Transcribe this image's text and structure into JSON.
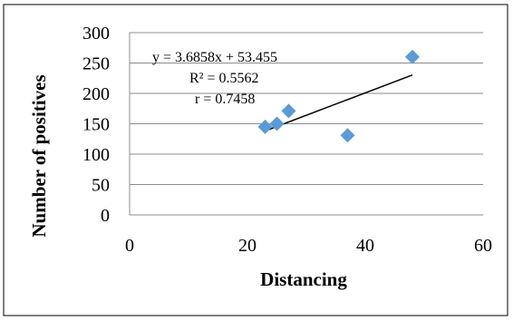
{
  "chart_data": {
    "type": "scatter",
    "title": "",
    "xlabel": "Distancing",
    "ylabel": "Number of positives",
    "xlim": [
      0,
      60
    ],
    "ylim": [
      0,
      300
    ],
    "x_ticks": [
      0,
      20,
      40,
      60
    ],
    "y_ticks": [
      0,
      50,
      100,
      150,
      200,
      250,
      300
    ],
    "x_tick_labels": [
      "0",
      "20",
      "40",
      "60"
    ],
    "y_tick_labels": [
      "0",
      "50",
      "100",
      "150",
      "200",
      "250",
      "300"
    ],
    "grid": "horizontal",
    "legend": "none",
    "marker_color": "#5b9bd5",
    "marker_shape": "diamond",
    "points": [
      {
        "x": 23,
        "y": 145
      },
      {
        "x": 25,
        "y": 150
      },
      {
        "x": 27,
        "y": 171
      },
      {
        "x": 37,
        "y": 131
      },
      {
        "x": 48,
        "y": 260
      }
    ],
    "trendline": {
      "slope": 3.6858,
      "intercept": 53.455,
      "x_range": [
        23,
        48
      ],
      "color": "#000000"
    },
    "annotations": {
      "equation": "y = 3.6858x + 53.455",
      "r_squared": "R² = 0.5562",
      "r": "r = 0.7458"
    }
  }
}
